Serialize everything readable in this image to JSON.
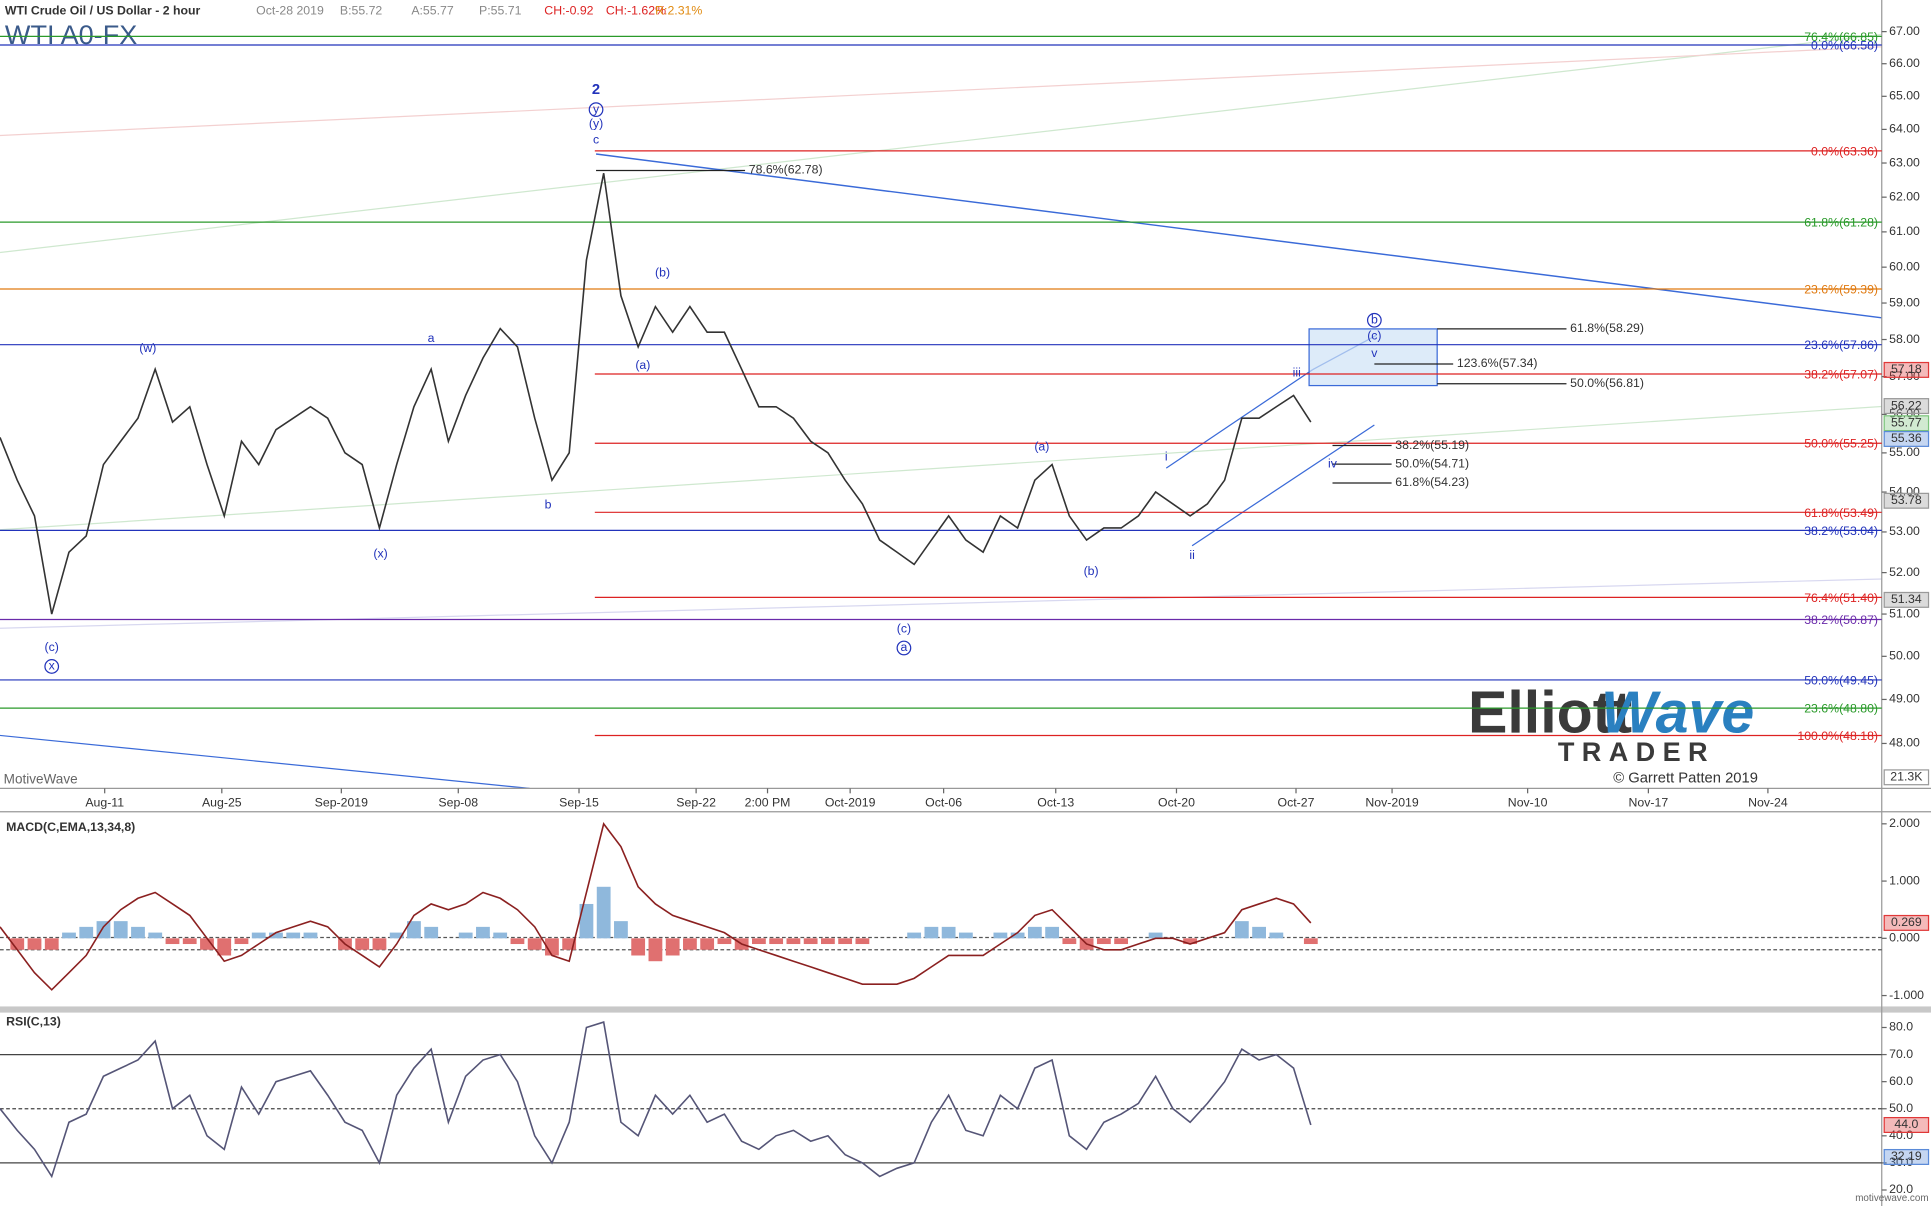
{
  "header": {
    "instrument": "WTI Crude Oil / US Dollar - 2 hour",
    "symbol": "WTI A0-FX",
    "date": "Oct-28 2019",
    "bid": "B:55.72",
    "ask": "A:55.77",
    "price": "P:55.71",
    "change": "CH:-0.92",
    "change_pct": "CH:-1.62%",
    "range": "R:2.31%"
  },
  "branding": {
    "logo_left": "Elliott",
    "logo_right": "Wave",
    "logo_sub": "TRADER",
    "copyright": "© Garrett Patten 2019",
    "platform": "MotiveWave",
    "site": "motivewave.com",
    "volume_label": "21.3K"
  },
  "chart_data": [
    {
      "type": "line",
      "color": "#333333",
      "log": true,
      "xlim": [
        0,
        109.1
      ],
      "ylim": [
        47.0,
        68.0
      ],
      "xticks": [
        {
          "value": 6.07,
          "label": "Aug-11"
        },
        {
          "value": 12.86,
          "label": "Aug-25"
        },
        {
          "value": 19.79,
          "label": "Sep-2019"
        },
        {
          "value": 26.57,
          "label": "Sep-08"
        },
        {
          "value": 33.57,
          "label": "Sep-15"
        },
        {
          "value": 40.36,
          "label": "Sep-22"
        },
        {
          "value": 44.5,
          "label": "2:00 PM"
        },
        {
          "value": 49.29,
          "label": "Oct-2019"
        },
        {
          "value": 54.71,
          "label": "Oct-06"
        },
        {
          "value": 61.21,
          "label": "Oct-13"
        },
        {
          "value": 68.21,
          "label": "Oct-20"
        },
        {
          "value": 75.14,
          "label": "Oct-27"
        },
        {
          "value": 80.71,
          "label": "Nov-2019"
        },
        {
          "value": 88.57,
          "label": "Nov-10"
        },
        {
          "value": 95.57,
          "label": "Nov-17"
        },
        {
          "value": 102.5,
          "label": "Nov-24"
        }
      ],
      "yticks": [
        {
          "value": 48,
          "label": "48.00"
        },
        {
          "value": 49,
          "label": "49.00"
        },
        {
          "value": 50,
          "label": "50.00"
        },
        {
          "value": 51,
          "label": "51.00"
        },
        {
          "value": 52,
          "label": "52.00"
        },
        {
          "value": 53,
          "label": "53.00"
        },
        {
          "value": 54,
          "label": "54.00"
        },
        {
          "value": 55,
          "label": "55.00"
        },
        {
          "value": 56,
          "label": "56.00"
        },
        {
          "value": 57,
          "label": "57.00"
        },
        {
          "value": 58,
          "label": "58.00"
        },
        {
          "value": 59,
          "label": "59.00"
        },
        {
          "value": 60,
          "label": "60.00"
        },
        {
          "value": 61,
          "label": "61.00"
        },
        {
          "value": 62,
          "label": "62.00"
        },
        {
          "value": 63,
          "label": "63.00"
        },
        {
          "value": 64,
          "label": "64.00"
        },
        {
          "value": 65,
          "label": "65.00"
        },
        {
          "value": 66,
          "label": "66.00"
        },
        {
          "value": 67,
          "label": "67.00"
        }
      ],
      "values": [
        55.4,
        54.3,
        53.4,
        51.0,
        52.5,
        52.9,
        54.7,
        55.3,
        55.9,
        57.2,
        55.8,
        56.2,
        54.7,
        53.4,
        55.3,
        54.7,
        55.6,
        55.9,
        56.2,
        55.9,
        55.0,
        54.7,
        53.1,
        54.7,
        56.2,
        57.2,
        55.3,
        56.5,
        57.5,
        58.3,
        57.8,
        55.9,
        54.3,
        55.0,
        60.2,
        62.7,
        59.2,
        57.8,
        58.9,
        58.2,
        58.9,
        58.2,
        58.2,
        57.2,
        56.2,
        56.2,
        55.9,
        55.3,
        55.0,
        54.3,
        53.7,
        52.8,
        52.5,
        52.2,
        52.8,
        53.4,
        52.8,
        52.5,
        53.4,
        53.1,
        54.3,
        54.7,
        53.4,
        52.8,
        53.1,
        53.1,
        53.4,
        54.0,
        53.7,
        53.4,
        53.7,
        54.3,
        55.9,
        55.9,
        56.2,
        56.5,
        55.8
      ],
      "levels": [
        {
          "label": "76.4%(66.85)",
          "value": 66.85,
          "color": "#2a9a2a"
        },
        {
          "label": "0.0%(66.58)",
          "value": 66.58,
          "color": "#2233bb"
        },
        {
          "label": "0.0%(63.36)",
          "value": 63.36,
          "color": "#dd2222"
        },
        {
          "label": "61.8%(61.28)",
          "value": 61.28,
          "color": "#2a9a2a"
        },
        {
          "label": "23.6%(59.39)",
          "value": 59.39,
          "color": "#e07a10"
        },
        {
          "label": "23.6%(57.86)",
          "value": 57.86,
          "color": "#2233bb"
        },
        {
          "label": "38.2%(57.07)",
          "value": 57.07,
          "color": "#dd2222"
        },
        {
          "label": "50.0%(55.25)",
          "value": 55.25,
          "color": "#dd2222"
        },
        {
          "label": "61.8%(53.49)",
          "value": 53.49,
          "color": "#dd2222"
        },
        {
          "label": "38.2%(53.04)",
          "value": 53.04,
          "color": "#2233bb"
        },
        {
          "label": "76.4%(51.40)",
          "value": 51.4,
          "color": "#dd2222"
        },
        {
          "label": "38.2%(50.87)",
          "value": 50.87,
          "color": "#6a2aaa"
        },
        {
          "label": "50.0%(49.45)",
          "value": 49.45,
          "color": "#2233bb"
        },
        {
          "label": "23.6%(48.80)",
          "value": 48.8,
          "color": "#2a9a2a"
        },
        {
          "label": "100.0%(48.18)",
          "value": 48.18,
          "color": "#dd2222"
        }
      ],
      "projections": [
        {
          "label": "78.6%(62.78)",
          "value": 62.78
        },
        {
          "label": "61.8%(58.29)",
          "value": 58.29
        },
        {
          "label": "123.6%(57.34)",
          "value": 57.34
        },
        {
          "label": "50.0%(56.81)",
          "value": 56.81
        },
        {
          "label": "38.2%(55.19)",
          "value": 55.19
        },
        {
          "label": "50.0%(54.71)",
          "value": 54.71
        },
        {
          "label": "61.8%(54.23)",
          "value": 54.23
        }
      ],
      "price_tags": [
        {
          "value": 57.18,
          "color": "#e03838"
        },
        {
          "value": 56.22,
          "color": "#999999"
        },
        {
          "value": 55.77,
          "color": "#7cc47c"
        },
        {
          "value": 55.36,
          "color": "#5a8ad8"
        },
        {
          "value": 53.78,
          "color": "#999999"
        },
        {
          "value": 51.34,
          "color": "#999999"
        }
      ],
      "wave_labels": [
        {
          "text": "2",
          "circled": false
        },
        {
          "text": "y",
          "circled": true
        },
        {
          "text": "(y)",
          "circled": false
        },
        {
          "text": "c",
          "circled": false
        },
        {
          "text": "(w)",
          "circled": false
        },
        {
          "text": "a",
          "circled": false
        },
        {
          "text": "b",
          "circled": false
        },
        {
          "text": "(x)",
          "circled": false
        },
        {
          "text": "(c)",
          "circled": false
        },
        {
          "text": "x",
          "circled": true
        },
        {
          "text": "(a)",
          "circled": false
        },
        {
          "text": "(b)",
          "circled": false
        },
        {
          "text": "(c)",
          "circled": false
        },
        {
          "text": "a",
          "circled": true
        },
        {
          "text": "(a)",
          "circled": false
        },
        {
          "text": "(b)",
          "circled": false
        },
        {
          "text": "i",
          "circled": false
        },
        {
          "text": "ii",
          "circled": false
        },
        {
          "text": "iii",
          "circled": false
        },
        {
          "text": "iv",
          "circled": false
        },
        {
          "text": "v",
          "circled": false
        },
        {
          "text": "(c)",
          "circled": false
        },
        {
          "text": "b",
          "circled": true
        }
      ]
    },
    {
      "type": "line",
      "title": "MACD(C,EMA,13,34,8)",
      "color": "#8b2020",
      "hist_up": "#8fb8dc",
      "hist_down": "#e07070",
      "xlim": [
        0,
        109.1
      ],
      "ylim": [
        -1.19,
        2.21
      ],
      "yticks": [
        {
          "value": 2,
          "label": "2.000"
        },
        {
          "value": 1,
          "label": "1.000"
        },
        {
          "value": 0,
          "label": "0.000"
        },
        {
          "value": -1,
          "label": "-1.000"
        }
      ],
      "values": [
        0.2,
        -0.2,
        -0.6,
        -0.9,
        -0.6,
        -0.3,
        0.2,
        0.5,
        0.7,
        0.8,
        0.6,
        0.4,
        0.0,
        -0.4,
        -0.3,
        -0.1,
        0.1,
        0.2,
        0.3,
        0.2,
        -0.1,
        -0.3,
        -0.5,
        -0.1,
        0.4,
        0.6,
        0.5,
        0.6,
        0.8,
        0.7,
        0.5,
        0.2,
        -0.3,
        -0.4,
        0.8,
        2.0,
        1.6,
        0.9,
        0.6,
        0.4,
        0.3,
        0.2,
        0.1,
        -0.1,
        -0.2,
        -0.3,
        -0.4,
        -0.5,
        -0.6,
        -0.7,
        -0.8,
        -0.8,
        -0.8,
        -0.7,
        -0.5,
        -0.3,
        -0.3,
        -0.3,
        -0.1,
        0.1,
        0.4,
        0.5,
        0.2,
        -0.1,
        -0.2,
        -0.2,
        -0.1,
        0.0,
        0.0,
        -0.1,
        0.0,
        0.1,
        0.5,
        0.6,
        0.7,
        0.6,
        0.27
      ],
      "histogram": [
        0.0,
        -0.2,
        -0.2,
        -0.2,
        0.1,
        0.2,
        0.3,
        0.3,
        0.2,
        0.1,
        -0.1,
        -0.1,
        -0.2,
        -0.3,
        -0.1,
        0.1,
        0.1,
        0.1,
        0.1,
        0.0,
        -0.2,
        -0.2,
        -0.2,
        0.1,
        0.3,
        0.2,
        0.0,
        0.1,
        0.2,
        0.1,
        -0.1,
        -0.2,
        -0.3,
        -0.2,
        0.6,
        0.9,
        0.3,
        -0.3,
        -0.4,
        -0.3,
        -0.2,
        -0.2,
        -0.1,
        -0.2,
        -0.1,
        -0.1,
        -0.1,
        -0.1,
        -0.1,
        -0.1,
        -0.1,
        0.0,
        0.0,
        0.1,
        0.2,
        0.2,
        0.1,
        0.0,
        0.1,
        0.1,
        0.2,
        0.2,
        -0.1,
        -0.2,
        -0.1,
        -0.1,
        0.0,
        0.1,
        0.0,
        -0.1,
        0.0,
        0.0,
        0.3,
        0.2,
        0.1,
        0.0,
        -0.1
      ],
      "price_tags": [
        {
          "value": 0.269,
          "color": "#e03838"
        }
      ]
    },
    {
      "type": "line",
      "title": "RSI(C,13)",
      "color": "#555577",
      "xlim": [
        0,
        109.1
      ],
      "ylim": [
        15,
        85.5
      ],
      "yticks": [
        {
          "value": 80,
          "label": "80.0"
        },
        {
          "value": 70,
          "label": "70.0"
        },
        {
          "value": 60,
          "label": "60.0"
        },
        {
          "value": 50,
          "label": "50.0"
        },
        {
          "value": 40,
          "label": "40.0"
        },
        {
          "value": 30,
          "label": "30.0"
        },
        {
          "value": 20,
          "label": "20.0"
        }
      ],
      "levels": [
        70,
        50,
        30
      ],
      "values": [
        50,
        42,
        35,
        25,
        45,
        48,
        62,
        65,
        68,
        75,
        50,
        55,
        40,
        35,
        58,
        48,
        60,
        62,
        64,
        55,
        45,
        42,
        30,
        55,
        65,
        72,
        45,
        62,
        68,
        70,
        60,
        40,
        30,
        45,
        80,
        82,
        45,
        40,
        55,
        48,
        55,
        45,
        48,
        38,
        35,
        40,
        42,
        38,
        40,
        33,
        30,
        25,
        28,
        30,
        45,
        55,
        42,
        40,
        55,
        50,
        65,
        68,
        40,
        35,
        45,
        48,
        52,
        62,
        50,
        45,
        52,
        60,
        72,
        68,
        70,
        65,
        44
      ],
      "price_tags": [
        {
          "value": 44,
          "label": "44.0",
          "color": "#e03838"
        },
        {
          "value": 32.19,
          "color": "#5a8ad8"
        }
      ]
    }
  ]
}
